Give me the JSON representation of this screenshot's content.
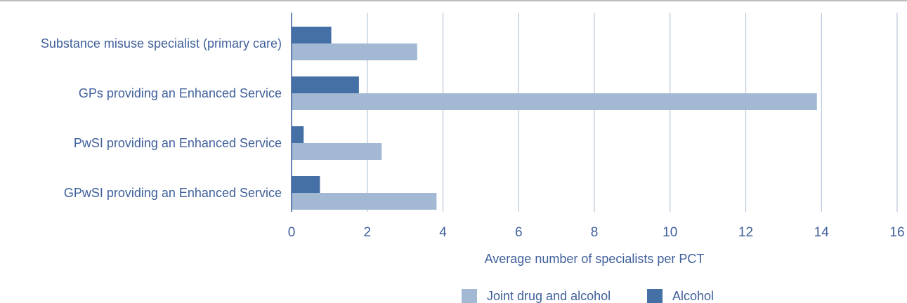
{
  "chart_data": {
    "type": "bar",
    "orientation": "horizontal",
    "categories": [
      "Substance misuse specialist (primary care)",
      "GPs providing an Enhanced Service",
      "PwSI providing an Enhanced Service",
      "GPwSI providing an Enhanced Service"
    ],
    "series": [
      {
        "name": "Alcohol",
        "color": "#4570a5",
        "values": [
          1.05,
          1.78,
          0.32,
          0.75
        ]
      },
      {
        "name": "Joint drug and alcohol",
        "color": "#a3b9d3",
        "values": [
          3.32,
          13.88,
          2.38,
          3.83
        ]
      }
    ],
    "xlim": [
      0,
      16
    ],
    "xticks": [
      "0",
      "2",
      "4",
      "6",
      "8",
      "10",
      "12",
      "14",
      "16"
    ],
    "xlabel": "Average number of specialists per PCT",
    "ylabel": "",
    "grid": "vertical",
    "legend": {
      "position": "bottom",
      "order": [
        "Joint drug and alcohol",
        "Alcohol"
      ]
    },
    "colors": {
      "text": "#3f5f9a",
      "gridline": "#b7c6da",
      "axis": "#3f5f9a",
      "topline": "#a5a5a5"
    }
  }
}
